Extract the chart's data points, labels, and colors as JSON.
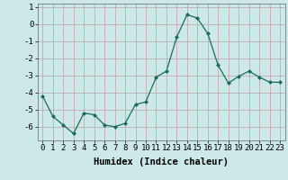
{
  "x": [
    0,
    1,
    2,
    3,
    4,
    5,
    6,
    7,
    8,
    9,
    10,
    11,
    12,
    13,
    14,
    15,
    16,
    17,
    18,
    19,
    20,
    21,
    22,
    23
  ],
  "y": [
    -4.2,
    -5.4,
    -5.9,
    -6.4,
    -5.2,
    -5.3,
    -5.9,
    -6.0,
    -5.8,
    -4.7,
    -4.55,
    -3.1,
    -2.75,
    -0.75,
    0.55,
    0.35,
    -0.55,
    -2.4,
    -3.45,
    -3.05,
    -2.75,
    -3.1,
    -3.4,
    -3.4
  ],
  "line_color": "#1a6b5a",
  "marker": "D",
  "marker_size": 2.0,
  "bg_color": "#cce8e8",
  "grid_color": "#c0a0a0",
  "xlabel": "Humidex (Indice chaleur)",
  "ylim": [
    -6.8,
    1.2
  ],
  "yticks": [
    1,
    0,
    -1,
    -2,
    -3,
    -4,
    -5,
    -6
  ],
  "xticks": [
    0,
    1,
    2,
    3,
    4,
    5,
    6,
    7,
    8,
    9,
    10,
    11,
    12,
    13,
    14,
    15,
    16,
    17,
    18,
    19,
    20,
    21,
    22,
    23
  ],
  "xlabel_fontsize": 7.5,
  "tick_fontsize": 6.5
}
